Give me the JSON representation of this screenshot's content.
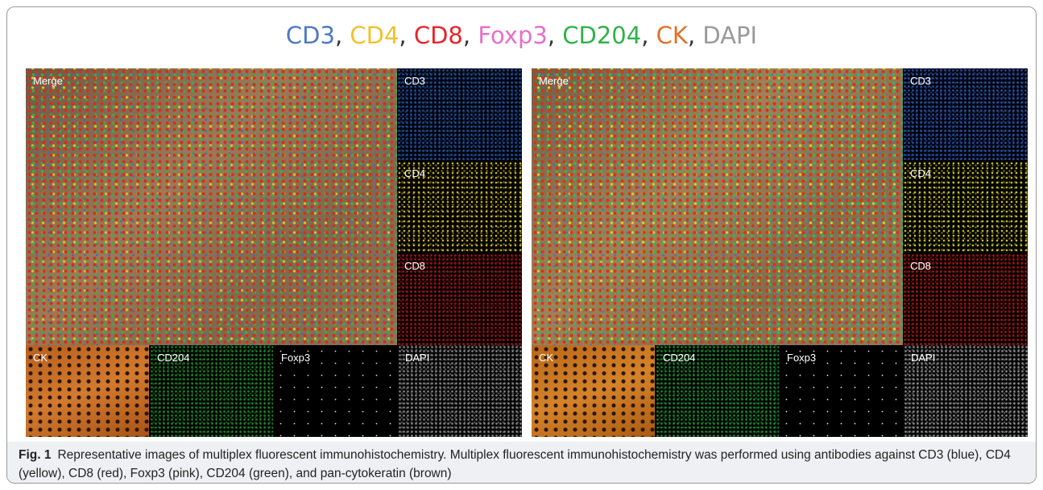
{
  "title_segments": [
    {
      "text": "CD3",
      "color": "#4e79c4"
    },
    {
      "text": ", ",
      "color": "#333333"
    },
    {
      "text": "CD4",
      "color": "#f2c12e"
    },
    {
      "text": ", ",
      "color": "#333333"
    },
    {
      "text": "CD8",
      "color": "#e8232a"
    },
    {
      "text": ", ",
      "color": "#333333"
    },
    {
      "text": "Foxp3",
      "color": "#e86fc8"
    },
    {
      "text": ", ",
      "color": "#333333"
    },
    {
      "text": "CD204",
      "color": "#2fb34a"
    },
    {
      "text": ", ",
      "color": "#333333"
    },
    {
      "text": "CK",
      "color": "#e0722a"
    },
    {
      "text": ", ",
      "color": "#333333"
    },
    {
      "text": "DAPI",
      "color": "#9a9a9a"
    }
  ],
  "panels": [
    {
      "merge": "Merge",
      "side": [
        "CD3",
        "CD4",
        "CD8"
      ],
      "bottom": [
        "CK",
        "CD204",
        "Foxp3",
        "DAPI"
      ]
    },
    {
      "merge": "Merge",
      "side": [
        "CD3",
        "CD4",
        "CD8"
      ],
      "bottom": [
        "CK",
        "CD204",
        "Foxp3",
        "DAPI"
      ]
    }
  ],
  "caption": {
    "label": "Fig. 1",
    "text": "Representative images of multiplex fluorescent immunohistochemistry. Multiplex fluorescent immunohistochemistry was performed using antibodies against CD3 (blue), CD4 (yellow), CD8 (red), Foxp3 (pink), CD204 (green), and pan-cytokeratin (brown)"
  }
}
